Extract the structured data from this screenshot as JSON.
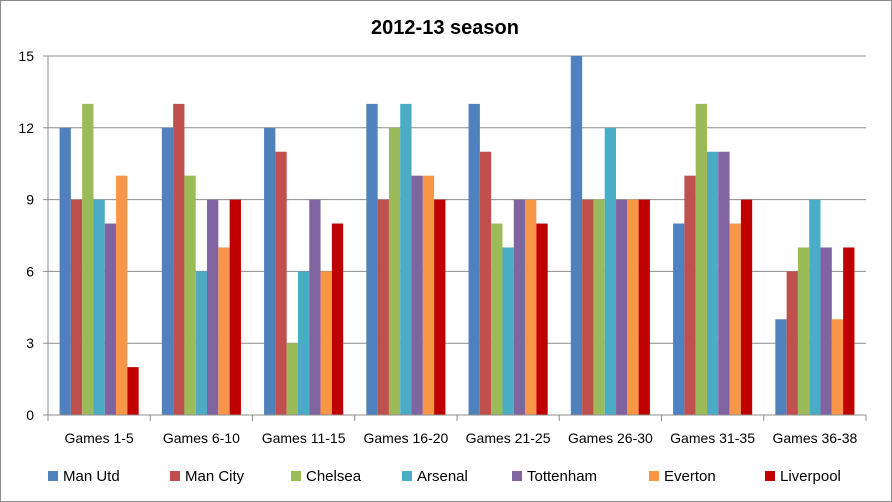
{
  "chart_data": {
    "type": "bar",
    "title": "2012-13 season",
    "xlabel": "",
    "ylabel": "",
    "ylim": [
      0,
      15
    ],
    "yticks": [
      0,
      3,
      6,
      9,
      12,
      15
    ],
    "grid": true,
    "legend_position": "bottom",
    "categories": [
      "Games 1-5",
      "Games 6-10",
      "Games 11-15",
      "Games 16-20",
      "Games 21-25",
      "Games 26-30",
      "Games 31-35",
      "Games 36-38"
    ],
    "series": [
      {
        "name": "Man Utd",
        "color": "#4f81bd",
        "values": [
          12,
          12,
          12,
          13,
          13,
          15,
          8,
          4
        ]
      },
      {
        "name": "Man City",
        "color": "#c0504d",
        "values": [
          9,
          13,
          11,
          9,
          11,
          9,
          10,
          6
        ]
      },
      {
        "name": "Chelsea",
        "color": "#9bbb59",
        "values": [
          13,
          10,
          3,
          12,
          8,
          9,
          13,
          7
        ]
      },
      {
        "name": "Arsenal",
        "color": "#4bacc6",
        "values": [
          9,
          6,
          6,
          13,
          7,
          12,
          11,
          9
        ]
      },
      {
        "name": "Tottenham",
        "color": "#8064a2",
        "values": [
          8,
          9,
          9,
          10,
          9,
          9,
          11,
          7
        ]
      },
      {
        "name": "Everton",
        "color": "#f79646",
        "values": [
          10,
          7,
          6,
          10,
          9,
          9,
          8,
          4
        ]
      },
      {
        "name": "Liverpool",
        "color": "#c00000",
        "values": [
          2,
          9,
          8,
          9,
          8,
          9,
          9,
          7
        ]
      }
    ]
  }
}
